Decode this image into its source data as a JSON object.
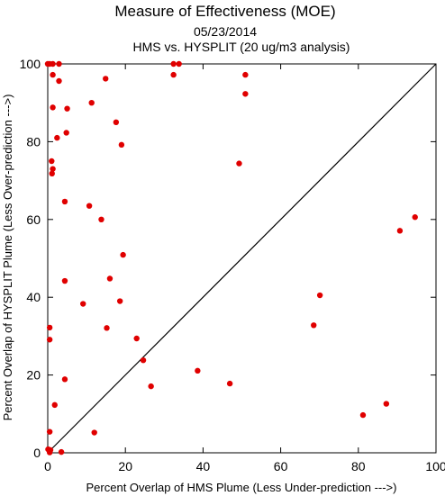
{
  "chart_data": {
    "type": "scatter",
    "title": "Measure of Effectiveness (MOE)",
    "date": "05/23/2014",
    "subtitle": "HMS vs. HYSPLIT  (20 ug/m3 analysis)",
    "xlabel": "Percent Overlap of HMS Plume (Less Under-prediction --->)",
    "ylabel": "Percent Overlap of HYSPLIT Plume (Less Over-prediction --->)",
    "xlim": [
      0,
      100
    ],
    "ylim": [
      0,
      100
    ],
    "xticks": [
      0,
      20,
      40,
      60,
      80,
      100
    ],
    "yticks": [
      0,
      20,
      40,
      60,
      80,
      100
    ],
    "reference_line": "y = x",
    "grid": false,
    "marker_color": "#e00000",
    "line_color": "#000000",
    "points": [
      {
        "x": 0.0,
        "y": 100.0
      },
      {
        "x": 0.5,
        "y": 100.0
      },
      {
        "x": 1.3,
        "y": 100.0
      },
      {
        "x": 2.9,
        "y": 100.0
      },
      {
        "x": 32.4,
        "y": 100.0
      },
      {
        "x": 33.8,
        "y": 100.0
      },
      {
        "x": 1.3,
        "y": 97.2
      },
      {
        "x": 2.9,
        "y": 95.6
      },
      {
        "x": 14.9,
        "y": 96.2
      },
      {
        "x": 32.4,
        "y": 97.2
      },
      {
        "x": 50.9,
        "y": 97.2
      },
      {
        "x": 50.9,
        "y": 92.3
      },
      {
        "x": 11.3,
        "y": 90.0
      },
      {
        "x": 1.3,
        "y": 88.8
      },
      {
        "x": 5.0,
        "y": 88.5
      },
      {
        "x": 17.6,
        "y": 85.0
      },
      {
        "x": 4.8,
        "y": 82.3
      },
      {
        "x": 2.4,
        "y": 81.0
      },
      {
        "x": 19.0,
        "y": 79.2
      },
      {
        "x": 1.0,
        "y": 75.0
      },
      {
        "x": 49.3,
        "y": 74.4
      },
      {
        "x": 1.3,
        "y": 73.0
      },
      {
        "x": 1.1,
        "y": 71.8
      },
      {
        "x": 4.4,
        "y": 64.6
      },
      {
        "x": 10.7,
        "y": 63.5
      },
      {
        "x": 13.8,
        "y": 60.0
      },
      {
        "x": 94.6,
        "y": 60.6
      },
      {
        "x": 90.7,
        "y": 57.1
      },
      {
        "x": 19.4,
        "y": 50.9
      },
      {
        "x": 4.4,
        "y": 44.2
      },
      {
        "x": 16.0,
        "y": 44.8
      },
      {
        "x": 70.1,
        "y": 40.5
      },
      {
        "x": 9.1,
        "y": 38.3
      },
      {
        "x": 18.6,
        "y": 39.0
      },
      {
        "x": 68.5,
        "y": 32.8
      },
      {
        "x": 0.5,
        "y": 32.2
      },
      {
        "x": 15.2,
        "y": 32.1
      },
      {
        "x": 0.5,
        "y": 29.1
      },
      {
        "x": 22.9,
        "y": 29.4
      },
      {
        "x": 24.6,
        "y": 23.8
      },
      {
        "x": 38.6,
        "y": 21.1
      },
      {
        "x": 4.4,
        "y": 18.9
      },
      {
        "x": 46.9,
        "y": 17.8
      },
      {
        "x": 26.6,
        "y": 17.1
      },
      {
        "x": 1.8,
        "y": 12.3
      },
      {
        "x": 87.2,
        "y": 12.6
      },
      {
        "x": 81.2,
        "y": 9.7
      },
      {
        "x": 0.5,
        "y": 5.4
      },
      {
        "x": 12.0,
        "y": 5.2
      },
      {
        "x": 0.1,
        "y": 0.9
      },
      {
        "x": 0.7,
        "y": 0.7
      },
      {
        "x": 0.5,
        "y": 0.1
      },
      {
        "x": 3.5,
        "y": 0.2
      }
    ]
  }
}
